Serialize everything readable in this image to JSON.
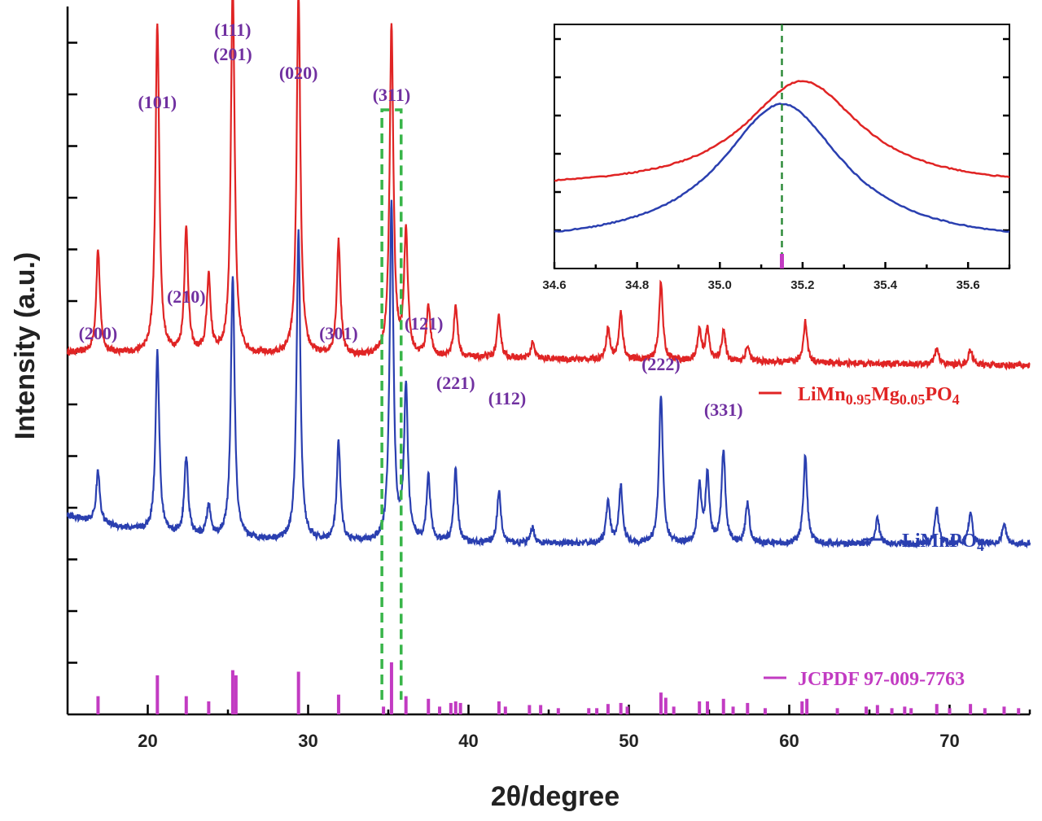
{
  "chart_data": [
    {
      "type": "line",
      "xlabel": "2θ/degree",
      "ylabel": "Intensity (a.u.)",
      "xlim": [
        15,
        75
      ],
      "xticks": [
        20,
        30,
        40,
        50,
        60,
        70
      ],
      "colors": {
        "red": "#e02424",
        "blue": "#2a3fb0",
        "reference": "#c23bc2",
        "box": "#39b54a",
        "hkl": "#7030a0"
      },
      "hkl_labels": [
        {
          "text": "(200)",
          "x": 16.9
        },
        {
          "text": "(101)",
          "x": 20.6
        },
        {
          "text": "(210)",
          "x": 22.4
        },
        {
          "text": "(111)",
          "x": 25.3
        },
        {
          "text": "(201)",
          "x": 25.3
        },
        {
          "text": "(020)",
          "x": 29.4
        },
        {
          "text": "(301)",
          "x": 31.9
        },
        {
          "text": "(311)",
          "x": 35.2
        },
        {
          "text": "(121)",
          "x": 36.1
        },
        {
          "text": "(221)",
          "x": 39.2
        },
        {
          "text": "(112)",
          "x": 41.9
        },
        {
          "text": "(222)",
          "x": 52.0
        },
        {
          "text": "(331)",
          "x": 55.9
        }
      ],
      "series": [
        {
          "name_parts": [
            {
              "t": "LiMn",
              "sub": false
            },
            {
              "t": "0.95",
              "sub": true
            },
            {
              "t": "Mg",
              "sub": false
            },
            {
              "t": "0.05",
              "sub": true
            },
            {
              "t": "PO",
              "sub": false
            },
            {
              "t": "4",
              "sub": true
            }
          ],
          "color": "#e02424",
          "baseline": 7.0,
          "peaks": [
            [
              16.9,
              2.0
            ],
            [
              20.6,
              6.4
            ],
            [
              22.4,
              2.4
            ],
            [
              23.8,
              1.5
            ],
            [
              25.3,
              7.2
            ],
            [
              29.4,
              7.0
            ],
            [
              31.9,
              2.2
            ],
            [
              35.2,
              6.4
            ],
            [
              36.1,
              2.4
            ],
            [
              37.5,
              1.0
            ],
            [
              39.2,
              1.0
            ],
            [
              41.9,
              0.8
            ],
            [
              44.0,
              0.3
            ],
            [
              48.7,
              0.6
            ],
            [
              49.5,
              0.9
            ],
            [
              52.0,
              1.5
            ],
            [
              54.4,
              0.6
            ],
            [
              54.9,
              0.6
            ],
            [
              55.9,
              0.6
            ],
            [
              57.4,
              0.3
            ],
            [
              61.0,
              0.8
            ],
            [
              69.2,
              0.3
            ],
            [
              71.3,
              0.3
            ]
          ]
        },
        {
          "name_parts": [
            {
              "t": "LiMnPO",
              "sub": false
            },
            {
              "t": "4",
              "sub": true
            }
          ],
          "color": "#2a3fb0",
          "baseline": 3.3,
          "peaks": [
            [
              16.9,
              1.0
            ],
            [
              20.6,
              3.5
            ],
            [
              22.4,
              1.5
            ],
            [
              23.8,
              0.6
            ],
            [
              25.3,
              5.1
            ],
            [
              29.4,
              6.0
            ],
            [
              31.9,
              1.9
            ],
            [
              35.2,
              6.6
            ],
            [
              36.1,
              3.0
            ],
            [
              37.5,
              1.3
            ],
            [
              39.2,
              1.4
            ],
            [
              41.9,
              1.0
            ],
            [
              44.0,
              0.3
            ],
            [
              48.7,
              0.8
            ],
            [
              49.5,
              1.1
            ],
            [
              52.0,
              2.9
            ],
            [
              54.4,
              1.1
            ],
            [
              54.9,
              1.3
            ],
            [
              55.9,
              1.8
            ],
            [
              57.4,
              0.8
            ],
            [
              61.0,
              1.7
            ],
            [
              65.5,
              0.5
            ],
            [
              69.2,
              0.7
            ],
            [
              71.3,
              0.6
            ],
            [
              73.4,
              0.4
            ]
          ]
        }
      ],
      "reference": {
        "name": "JCPDF 97-009-7763",
        "sticks": [
          [
            16.9,
            0.35
          ],
          [
            20.6,
            0.75
          ],
          [
            22.4,
            0.35
          ],
          [
            23.8,
            0.25
          ],
          [
            25.3,
            0.85
          ],
          [
            25.5,
            0.75
          ],
          [
            29.4,
            0.82
          ],
          [
            31.9,
            0.38
          ],
          [
            34.7,
            0.15
          ],
          [
            35.2,
            1.0
          ],
          [
            36.1,
            0.35
          ],
          [
            37.5,
            0.3
          ],
          [
            38.2,
            0.15
          ],
          [
            38.9,
            0.22
          ],
          [
            39.2,
            0.25
          ],
          [
            39.5,
            0.22
          ],
          [
            41.9,
            0.25
          ],
          [
            42.3,
            0.15
          ],
          [
            43.8,
            0.18
          ],
          [
            44.5,
            0.18
          ],
          [
            45.6,
            0.12
          ],
          [
            47.5,
            0.12
          ],
          [
            48.0,
            0.12
          ],
          [
            48.7,
            0.2
          ],
          [
            49.5,
            0.22
          ],
          [
            49.9,
            0.15
          ],
          [
            52.0,
            0.42
          ],
          [
            52.3,
            0.32
          ],
          [
            52.8,
            0.15
          ],
          [
            54.4,
            0.25
          ],
          [
            54.9,
            0.25
          ],
          [
            55.9,
            0.3
          ],
          [
            56.5,
            0.15
          ],
          [
            57.4,
            0.22
          ],
          [
            58.5,
            0.12
          ],
          [
            60.8,
            0.25
          ],
          [
            61.1,
            0.3
          ],
          [
            63.0,
            0.12
          ],
          [
            64.8,
            0.15
          ],
          [
            65.5,
            0.18
          ],
          [
            66.4,
            0.12
          ],
          [
            67.2,
            0.15
          ],
          [
            67.6,
            0.12
          ],
          [
            69.2,
            0.2
          ],
          [
            70.0,
            0.12
          ],
          [
            71.3,
            0.2
          ],
          [
            72.2,
            0.12
          ],
          [
            73.4,
            0.15
          ],
          [
            74.3,
            0.12
          ]
        ]
      },
      "highlight_box_x": [
        34.6,
        35.8
      ]
    },
    {
      "type": "line",
      "xlim": [
        34.6,
        35.7
      ],
      "xticks": [
        "34.6",
        "34.8",
        "35.0",
        "35.2",
        "35.4",
        "35.6"
      ],
      "dashed_line_x": 35.15,
      "series": [
        {
          "color": "#e02424",
          "peak_x": 35.2,
          "baseline": 2.1,
          "height": 2.8,
          "width": 0.17,
          "skew": 0.0006
        },
        {
          "color": "#2a3fb0",
          "peak_x": 35.15,
          "baseline": 0.6,
          "height": 3.7,
          "width": 0.18,
          "skew": 0.0004
        }
      ],
      "reference_stick_x": 35.15
    }
  ]
}
